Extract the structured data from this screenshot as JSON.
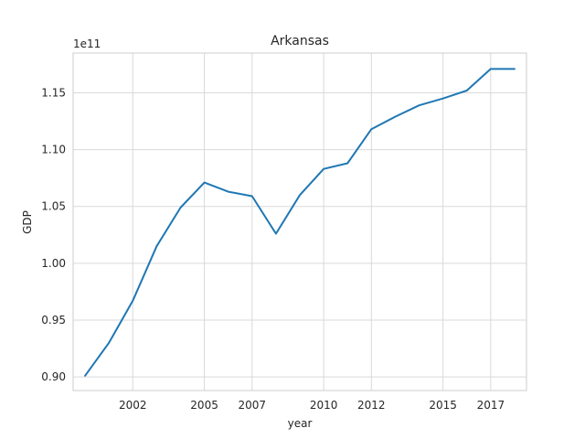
{
  "chart_data": {
    "type": "line",
    "title": "Arkansas",
    "xlabel": "year",
    "ylabel": "GDP",
    "y_offset_label": "1e11",
    "x_ticks": [
      2002,
      2005,
      2007,
      2010,
      2012,
      2015,
      2017
    ],
    "x_tick_labels": [
      "2002",
      "2005",
      "2007",
      "2010",
      "2012",
      "2015",
      "2017"
    ],
    "y_ticks": [
      0.9,
      0.95,
      1.0,
      1.05,
      1.1,
      1.15
    ],
    "y_tick_labels": [
      "0.90",
      "0.95",
      "1.00",
      "1.05",
      "1.10",
      "1.15"
    ],
    "xlim": [
      1999.5,
      2018.5
    ],
    "ylim": [
      0.888,
      1.185
    ],
    "grid": true,
    "colors": {
      "line": "#1f77b4"
    },
    "x": [
      2000,
      2001,
      2002,
      2003,
      2004,
      2005,
      2006,
      2007,
      2008,
      2009,
      2010,
      2011,
      2012,
      2013,
      2014,
      2015,
      2016,
      2017,
      2018
    ],
    "series": [
      {
        "values": [
          0.901,
          0.93,
          0.967,
          1.015,
          1.049,
          1.071,
          1.063,
          1.059,
          1.026,
          1.06,
          1.083,
          1.088,
          1.118,
          1.129,
          1.139,
          1.145,
          1.152,
          1.171,
          1.171
        ]
      }
    ]
  }
}
